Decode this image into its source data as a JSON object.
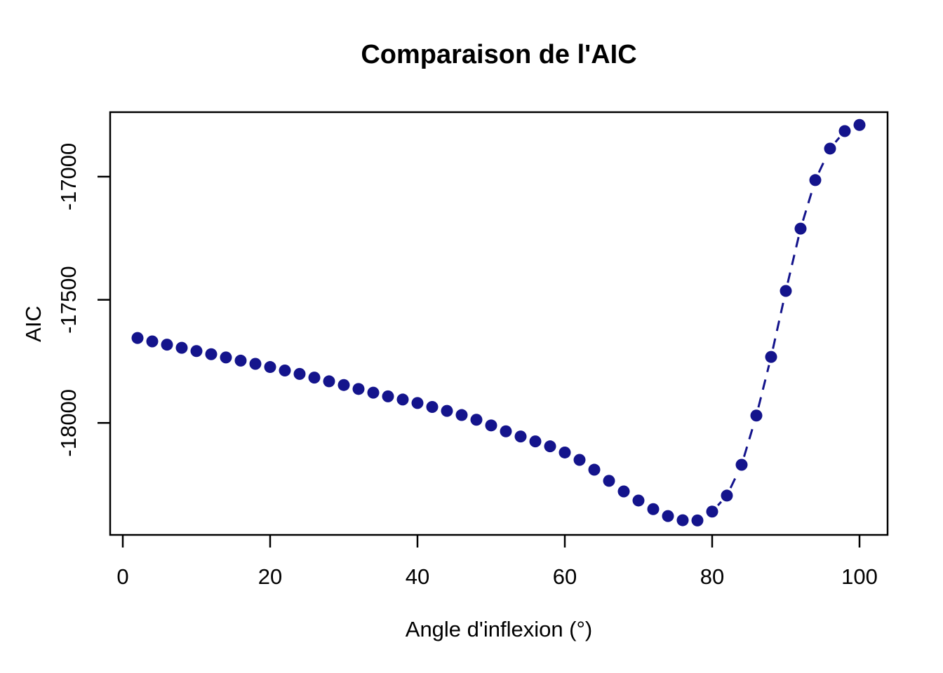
{
  "title": "Comparaison de l'AIC",
  "colors": {
    "point": "#14148c",
    "line": "#14148c",
    "axis": "#000000",
    "background": "#ffffff"
  },
  "chart_data": {
    "type": "scatter",
    "title": "Comparaison de l'AIC",
    "xlabel": "Angle d'inflexion (°)",
    "ylabel": "AIC",
    "x_ticks": [
      0,
      20,
      40,
      60,
      80,
      100
    ],
    "y_ticks": [
      -17000,
      -17500,
      -18000
    ],
    "xlim": [
      -1.9,
      103.9
    ],
    "ylim": [
      -18455,
      -16740
    ],
    "grid": false,
    "legend": "none",
    "marker": "filled-circle",
    "line_style": "dashed",
    "series_color": "#14148c",
    "x": [
      2,
      4,
      6,
      8,
      10,
      12,
      14,
      16,
      18,
      20,
      22,
      24,
      26,
      28,
      30,
      32,
      34,
      36,
      38,
      40,
      42,
      44,
      46,
      48,
      50,
      52,
      54,
      56,
      58,
      60,
      62,
      64,
      66,
      68,
      70,
      72,
      74,
      76,
      78,
      80,
      82,
      84,
      86,
      88,
      90,
      92,
      94,
      96,
      98,
      100
    ],
    "y": [
      -17655,
      -17669,
      -17682,
      -17695,
      -17708,
      -17721,
      -17734,
      -17747,
      -17760,
      -17773,
      -17787,
      -17801,
      -17816,
      -17831,
      -17846,
      -17862,
      -17877,
      -17892,
      -17905,
      -17919,
      -17935,
      -17951,
      -17968,
      -17987,
      -18010,
      -18034,
      -18055,
      -18075,
      -18095,
      -18120,
      -18150,
      -18190,
      -18235,
      -18278,
      -18315,
      -18350,
      -18378,
      -18395,
      -18396,
      -18360,
      -18295,
      -18170,
      -17970,
      -17732,
      -17464,
      -17211,
      -17014,
      -16886,
      -16815,
      -16790
    ]
  }
}
